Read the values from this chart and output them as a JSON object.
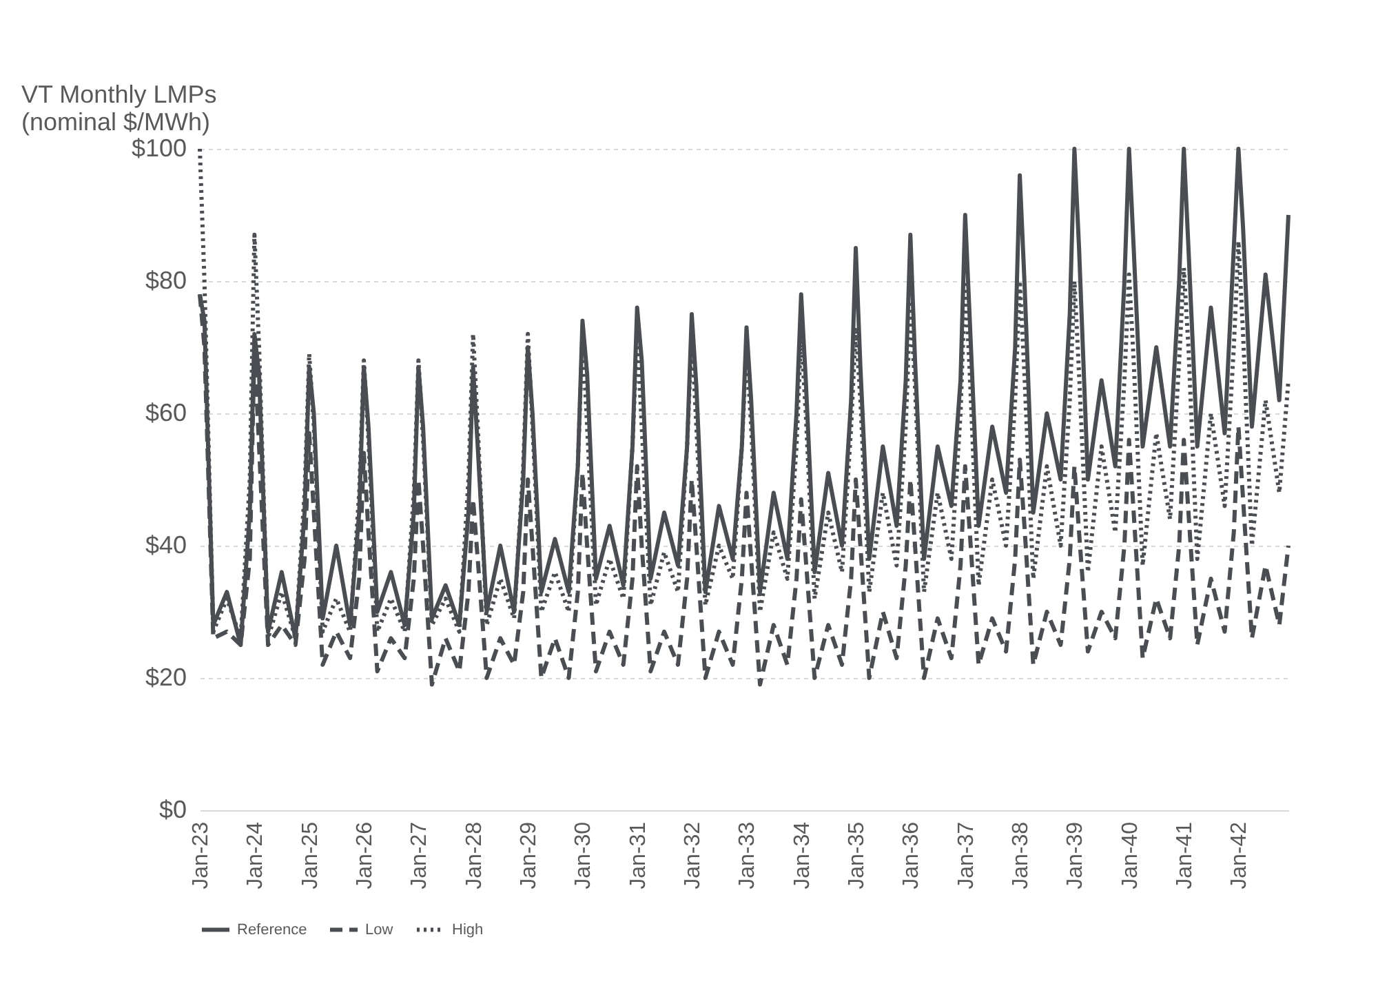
{
  "chart_data": {
    "type": "line",
    "ylabel": "VT Monthly LMPs (nominal $/MWh)",
    "x": [
      "2023-01",
      "2023-02",
      "2023-04",
      "2023-07",
      "2023-10",
      "2023-12",
      "2024-01",
      "2024-02",
      "2024-04",
      "2024-07",
      "2024-10",
      "2024-12",
      "2025-01",
      "2025-02",
      "2025-04",
      "2025-07",
      "2025-10",
      "2025-12",
      "2026-01",
      "2026-02",
      "2026-04",
      "2026-07",
      "2026-10",
      "2026-12",
      "2027-01",
      "2027-02",
      "2027-04",
      "2027-07",
      "2027-10",
      "2027-12",
      "2028-01",
      "2028-02",
      "2028-04",
      "2028-07",
      "2028-10",
      "2028-12",
      "2029-01",
      "2029-02",
      "2029-04",
      "2029-07",
      "2029-10",
      "2029-12",
      "2030-01",
      "2030-02",
      "2030-04",
      "2030-07",
      "2030-10",
      "2030-12",
      "2031-01",
      "2031-02",
      "2031-04",
      "2031-07",
      "2031-10",
      "2031-12",
      "2032-01",
      "2032-02",
      "2032-04",
      "2032-07",
      "2032-10",
      "2032-12",
      "2033-01",
      "2033-02",
      "2033-04",
      "2033-07",
      "2033-10",
      "2033-12",
      "2034-01",
      "2034-02",
      "2034-04",
      "2034-07",
      "2034-10",
      "2034-12",
      "2035-01",
      "2035-02",
      "2035-04",
      "2035-07",
      "2035-10",
      "2035-12",
      "2036-01",
      "2036-02",
      "2036-04",
      "2036-07",
      "2036-10",
      "2036-12",
      "2037-01",
      "2037-02",
      "2037-04",
      "2037-07",
      "2037-10",
      "2037-12",
      "2038-01",
      "2038-02",
      "2038-04",
      "2038-07",
      "2038-10",
      "2038-12",
      "2039-01",
      "2039-02",
      "2039-04",
      "2039-07",
      "2039-10",
      "2039-12",
      "2040-01",
      "2040-02",
      "2040-04",
      "2040-07",
      "2040-10",
      "2040-12",
      "2041-01",
      "2041-02",
      "2041-04",
      "2041-07",
      "2041-10",
      "2041-12",
      "2042-01",
      "2042-02",
      "2042-04",
      "2042-07",
      "2042-10",
      "2042-12"
    ],
    "series": [
      {
        "name": "Reference",
        "color": "#4a4e53",
        "line_style": "solid",
        "values": [
          78,
          74,
          28,
          33,
          25,
          45,
          72,
          66,
          27,
          36,
          26,
          45,
          67,
          60,
          29,
          40,
          28,
          45,
          67,
          58,
          30,
          36,
          28,
          45,
          67,
          58,
          29,
          34,
          28,
          45,
          67,
          55,
          30,
          40,
          30,
          50,
          70,
          60,
          33,
          41,
          33,
          52,
          74,
          66,
          35,
          43,
          34,
          55,
          76,
          68,
          35,
          45,
          37,
          55,
          75,
          64,
          33,
          46,
          38,
          55,
          73,
          62,
          33,
          48,
          38,
          60,
          78,
          65,
          36,
          51,
          40,
          62,
          85,
          67,
          38,
          55,
          43,
          65,
          87,
          68,
          38,
          55,
          46,
          65,
          90,
          74,
          43,
          58,
          48,
          70,
          96,
          80,
          45,
          60,
          50,
          75,
          100,
          85,
          50,
          65,
          52,
          80,
          100,
          85,
          55,
          70,
          55,
          80,
          100,
          85,
          55,
          76,
          57,
          85,
          100,
          88,
          58,
          81,
          62,
          90
        ]
      },
      {
        "name": "Low",
        "color": "#4a4e53",
        "line_style": "dashed",
        "values": [
          78,
          70,
          26,
          27,
          25,
          38,
          70,
          55,
          25,
          28,
          25,
          38,
          57,
          45,
          22,
          27,
          23,
          35,
          54,
          42,
          21,
          26,
          23,
          35,
          50,
          40,
          19,
          26,
          21,
          33,
          47,
          38,
          20,
          26,
          22,
          33,
          50,
          40,
          20,
          26,
          20,
          33,
          51,
          40,
          21,
          27,
          22,
          35,
          52,
          40,
          21,
          27,
          22,
          35,
          50,
          40,
          20,
          27,
          22,
          35,
          48,
          38,
          19,
          28,
          22,
          35,
          47,
          38,
          20,
          28,
          22,
          35,
          50,
          40,
          20,
          30,
          23,
          37,
          50,
          40,
          20,
          29,
          23,
          37,
          52,
          42,
          22,
          29,
          24,
          38,
          53,
          43,
          22,
          30,
          25,
          38,
          52,
          42,
          24,
          30,
          26,
          40,
          56,
          45,
          23,
          32,
          26,
          40,
          56,
          45,
          25,
          35,
          27,
          42,
          58,
          47,
          26,
          37,
          28,
          40
        ]
      },
      {
        "name": "High",
        "color": "#4a4e53",
        "line_style": "dotted",
        "values": [
          100,
          80,
          27,
          32,
          26,
          50,
          87,
          70,
          26,
          33,
          26,
          48,
          69,
          58,
          27,
          32,
          27,
          48,
          68,
          56,
          27,
          32,
          27,
          48,
          68,
          56,
          28,
          32,
          27,
          50,
          72,
          58,
          28,
          35,
          29,
          52,
          72,
          58,
          30,
          36,
          30,
          52,
          72,
          58,
          31,
          38,
          32,
          55,
          72,
          58,
          31,
          39,
          33,
          55,
          72,
          58,
          31,
          40,
          35,
          55,
          70,
          58,
          30,
          42,
          35,
          55,
          72,
          60,
          32,
          45,
          36,
          58,
          73,
          62,
          33,
          48,
          37,
          58,
          77,
          64,
          33,
          48,
          38,
          60,
          80,
          66,
          34,
          50,
          40,
          62,
          80,
          66,
          35,
          52,
          40,
          62,
          80,
          66,
          36,
          55,
          42,
          65,
          81,
          68,
          37,
          57,
          44,
          68,
          82,
          70,
          38,
          60,
          46,
          70,
          86,
          72,
          40,
          62,
          48,
          65
        ]
      }
    ],
    "xlim": [
      "2023-01",
      "2042-12"
    ],
    "xticks": [
      {
        "value": "2023-01",
        "label": "Jan-23"
      },
      {
        "value": "2024-01",
        "label": "Jan-24"
      },
      {
        "value": "2025-01",
        "label": "Jan-25"
      },
      {
        "value": "2026-01",
        "label": "Jan-26"
      },
      {
        "value": "2027-01",
        "label": "Jan-27"
      },
      {
        "value": "2028-01",
        "label": "Jan-28"
      },
      {
        "value": "2029-01",
        "label": "Jan-29"
      },
      {
        "value": "2030-01",
        "label": "Jan-30"
      },
      {
        "value": "2031-01",
        "label": "Jan-31"
      },
      {
        "value": "2032-01",
        "label": "Jan-32"
      },
      {
        "value": "2033-01",
        "label": "Jan-33"
      },
      {
        "value": "2034-01",
        "label": "Jan-34"
      },
      {
        "value": "2035-01",
        "label": "Jan-35"
      },
      {
        "value": "2036-01",
        "label": "Jan-36"
      },
      {
        "value": "2037-01",
        "label": "Jan-37"
      },
      {
        "value": "2038-01",
        "label": "Jan-38"
      },
      {
        "value": "2039-01",
        "label": "Jan-39"
      },
      {
        "value": "2040-01",
        "label": "Jan-40"
      },
      {
        "value": "2041-01",
        "label": "Jan-41"
      },
      {
        "value": "2042-01",
        "label": "Jan-42"
      }
    ],
    "ylim": [
      0,
      100
    ],
    "yticks": [
      {
        "value": 0,
        "label": "$0"
      },
      {
        "value": 20,
        "label": "$20"
      },
      {
        "value": 40,
        "label": "$40"
      },
      {
        "value": 60,
        "label": "$60"
      },
      {
        "value": 80,
        "label": "$80"
      },
      {
        "value": 100,
        "label": "$100"
      }
    ],
    "grid": "y",
    "legend": "bottom"
  }
}
